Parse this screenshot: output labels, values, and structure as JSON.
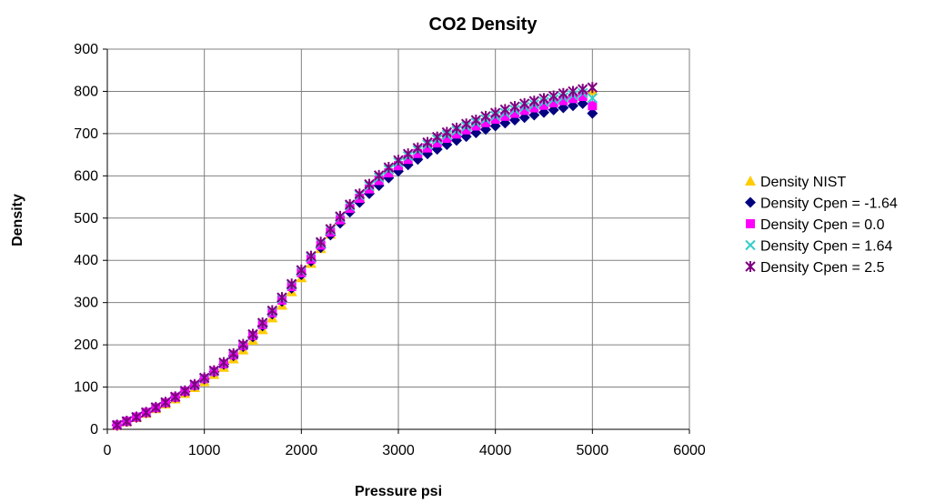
{
  "chart_data": {
    "type": "scatter",
    "title": "CO2 Density",
    "xlabel": "Pressure psi",
    "ylabel": "Density",
    "xlim": [
      0,
      6000
    ],
    "ylim": [
      0,
      900
    ],
    "xticks": [
      "0",
      "1000",
      "2000",
      "3000",
      "4000",
      "5000",
      "6000"
    ],
    "yticks": [
      "0",
      "100",
      "200",
      "300",
      "400",
      "500",
      "600",
      "700",
      "800",
      "900"
    ],
    "grid": true,
    "legend_position": "right",
    "x": [
      100,
      200,
      300,
      400,
      500,
      600,
      700,
      800,
      900,
      1000,
      1100,
      1200,
      1300,
      1400,
      1500,
      1600,
      1700,
      1800,
      1900,
      2000,
      2100,
      2200,
      2300,
      2400,
      2500,
      2600,
      2700,
      2800,
      2900,
      3000,
      3100,
      3200,
      3300,
      3400,
      3500,
      3600,
      3700,
      3800,
      3900,
      4000,
      4100,
      4200,
      4300,
      4400,
      4500,
      4600,
      4700,
      4800,
      4900,
      5000
    ],
    "series": [
      {
        "name": "Density NIST",
        "marker": "triangle",
        "color": "#FFCC00",
        "values": [
          9,
          18,
          28,
          38,
          49,
          60,
          72,
          85,
          99,
          113,
          130,
          147,
          167,
          188,
          211,
          236,
          264,
          294,
          326,
          359,
          393,
          428,
          462,
          494,
          524,
          551,
          575,
          597,
          616,
          633,
          648,
          662,
          675,
          687,
          698,
          708,
          717,
          726,
          735,
          743,
          750,
          757,
          764,
          770,
          776,
          782,
          787,
          792,
          797,
          802
        ]
      },
      {
        "name": "Density Cpen = -1.64",
        "marker": "diamond",
        "color": "#000080",
        "values": [
          10,
          19,
          29,
          40,
          51,
          63,
          76,
          89,
          104,
          119,
          136,
          154,
          174,
          196,
          219,
          245,
          273,
          303,
          334,
          366,
          398,
          430,
          460,
          488,
          514,
          537,
          558,
          577,
          595,
          611,
          626,
          639,
          652,
          663,
          674,
          684,
          693,
          702,
          710,
          718,
          725,
          732,
          738,
          744,
          750,
          756,
          761,
          766,
          771,
          748
        ]
      },
      {
        "name": "Density Cpen = 0.0",
        "marker": "square",
        "color": "#FF00FF",
        "values": [
          10,
          19,
          29,
          40,
          51,
          63,
          76,
          90,
          104,
          120,
          137,
          155,
          176,
          198,
          222,
          248,
          276,
          306,
          338,
          371,
          403,
          436,
          467,
          496,
          523,
          547,
          569,
          589,
          607,
          624,
          639,
          653,
          666,
          678,
          689,
          699,
          709,
          718,
          726,
          734,
          741,
          748,
          755,
          761,
          767,
          773,
          778,
          783,
          788,
          766
        ]
      },
      {
        "name": "Density Cpen = 1.64",
        "marker": "x",
        "color": "#33CCCC",
        "values": [
          10,
          19,
          29,
          40,
          52,
          64,
          77,
          91,
          105,
          121,
          138,
          157,
          178,
          200,
          224,
          251,
          279,
          310,
          342,
          375,
          408,
          441,
          472,
          502,
          529,
          554,
          576,
          596,
          615,
          632,
          647,
          661,
          674,
          686,
          697,
          707,
          717,
          726,
          734,
          742,
          749,
          756,
          763,
          769,
          775,
          781,
          786,
          791,
          796,
          784
        ]
      },
      {
        "name": "Density Cpen = 2.5",
        "marker": "star",
        "color": "#800080",
        "values": [
          10,
          19,
          29,
          40,
          52,
          64,
          77,
          91,
          106,
          122,
          139,
          158,
          179,
          201,
          225,
          252,
          281,
          312,
          344,
          377,
          410,
          443,
          474,
          504,
          532,
          557,
          580,
          601,
          620,
          637,
          652,
          666,
          679,
          692,
          703,
          713,
          723,
          732,
          741,
          749,
          757,
          764,
          771,
          777,
          783,
          789,
          795,
          800,
          805,
          809
        ]
      }
    ]
  }
}
